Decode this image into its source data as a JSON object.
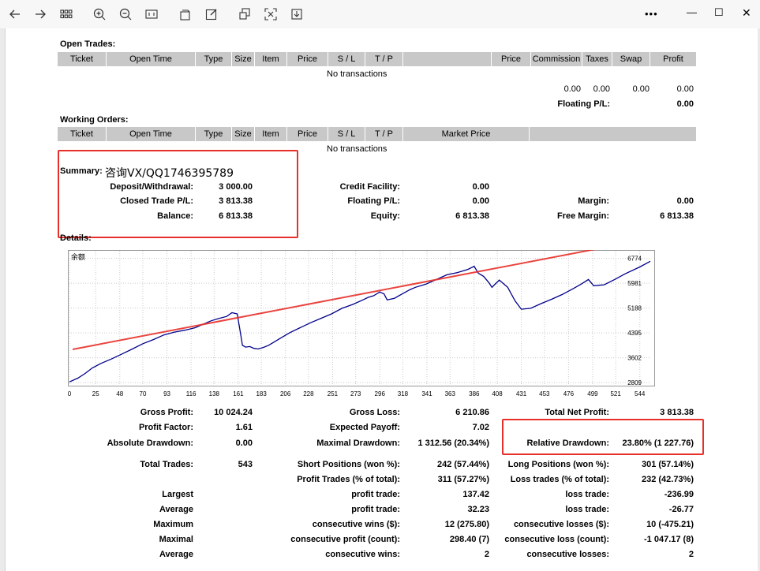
{
  "toolbar": {
    "buttons": [
      "back-icon",
      "forward-icon",
      "grid-icon",
      "zoom-in-icon",
      "zoom-out-icon",
      "fit-width-icon",
      "rotate-icon",
      "edit-icon",
      "select-icon",
      "fullscreen-icon",
      "save-icon"
    ],
    "more": "•••",
    "minimize": "—",
    "maximize": "☐",
    "close": "✕"
  },
  "open_trades": {
    "title": "Open Trades:",
    "columns": [
      "Ticket",
      "Open Time",
      "Type",
      "Size",
      "Item",
      "Price",
      "S / L",
      "T / P",
      "",
      "Price",
      "Commission",
      "Taxes",
      "Swap",
      "Profit"
    ],
    "empty": "No transactions",
    "totals": {
      "commission": "0.00",
      "taxes": "0.00",
      "swap": "0.00",
      "profit": "0.00"
    },
    "floating_label": "Floating P/L:",
    "floating_value": "0.00"
  },
  "working_orders": {
    "title": "Working Orders:",
    "columns": [
      "Ticket",
      "Open Time",
      "Type",
      "Size",
      "Item",
      "Price",
      "S / L",
      "T / P",
      "Market Price",
      ""
    ],
    "empty": "No transactions"
  },
  "summary": {
    "title": "Summary:",
    "overlay": "咨询VX/QQ1746395789",
    "deposit_label": "Deposit/Withdrawal:",
    "deposit_value": "3 000.00",
    "closed_pl_label": "Closed Trade P/L:",
    "closed_pl_value": "3 813.38",
    "balance_label": "Balance:",
    "balance_value": "6 813.38",
    "credit_label": "Credit Facility:",
    "credit_value": "0.00",
    "floating_label": "Floating P/L:",
    "floating_value": "0.00",
    "equity_label": "Equity:",
    "equity_value": "6 813.38",
    "margin_label": "Margin:",
    "margin_value": "0.00",
    "free_margin_label": "Free Margin:",
    "free_margin_value": "6 813.38"
  },
  "details": {
    "title": "Details:",
    "stats": [
      [
        "Gross Profit:",
        "10 024.24",
        "Gross Loss:",
        "6 210.86",
        "Total Net Profit:",
        "3 813.38"
      ],
      [
        "Profit Factor:",
        "1.61",
        "Expected Payoff:",
        "7.02",
        "",
        ""
      ],
      [
        "Absolute Drawdown:",
        "0.00",
        "Maximal Drawdown:",
        "1 312.56 (20.34%)",
        "Relative Drawdown:",
        "23.80% (1 227.76)"
      ],
      [
        "Total Trades:",
        "543",
        "Short Positions (won %):",
        "242 (57.44%)",
        "Long Positions (won %):",
        "301 (57.14%)"
      ],
      [
        "",
        "",
        "Profit Trades (% of total):",
        "311 (57.27%)",
        "Loss trades (% of total):",
        "232 (42.73%)"
      ],
      [
        "Largest",
        "",
        "profit trade:",
        "137.42",
        "loss trade:",
        "-236.99"
      ],
      [
        "Average",
        "",
        "profit trade:",
        "32.23",
        "loss trade:",
        "-26.77"
      ],
      [
        "Maximum",
        "",
        "consecutive wins ($):",
        "12 (275.80)",
        "consecutive losses ($):",
        "10 (-475.21)"
      ],
      [
        "Maximal",
        "",
        "consecutive profit (count):",
        "298.40 (7)",
        "consecutive loss (count):",
        "-1 047.17 (8)"
      ],
      [
        "Average",
        "",
        "consecutive wins:",
        "2",
        "consecutive losses:",
        "2"
      ]
    ]
  },
  "chart_data": {
    "type": "line",
    "title": "余额",
    "x_ticks": [
      0,
      25,
      48,
      70,
      93,
      116,
      138,
      161,
      183,
      206,
      228,
      251,
      273,
      296,
      318,
      341,
      363,
      386,
      408,
      431,
      453,
      476,
      499,
      521,
      544
    ],
    "y_ticks": [
      2809,
      3602,
      4395,
      5188,
      5981,
      6774
    ],
    "xlim": [
      0,
      554
    ],
    "ylim": [
      2710,
      6990
    ],
    "series": [
      {
        "color": "#00008b",
        "x": [
          0,
          8,
          15,
          22,
          30,
          40,
          50,
          60,
          70,
          80,
          90,
          100,
          110,
          120,
          128,
          135,
          142,
          150,
          155,
          160,
          163,
          165,
          168,
          172,
          176,
          180,
          185,
          190,
          195,
          200,
          210,
          220,
          230,
          240,
          250,
          260,
          270,
          280,
          285,
          290,
          296,
          300,
          303,
          310,
          318,
          325,
          330,
          340,
          350,
          360,
          370,
          380,
          386,
          390,
          395,
          400,
          403,
          405,
          410,
          418,
          425,
          431,
          440,
          450,
          460,
          470,
          480,
          488,
          495,
          500,
          510,
          520,
          530,
          544,
          554
        ],
        "y": [
          2830,
          2950,
          3100,
          3280,
          3420,
          3560,
          3720,
          3880,
          4050,
          4180,
          4330,
          4420,
          4480,
          4560,
          4680,
          4780,
          4850,
          4920,
          5040,
          5000,
          4420,
          4000,
          3940,
          3960,
          3900,
          3880,
          3930,
          4000,
          4100,
          4200,
          4400,
          4560,
          4720,
          4860,
          5000,
          5180,
          5300,
          5450,
          5530,
          5580,
          5700,
          5640,
          5450,
          5500,
          5650,
          5780,
          5850,
          5950,
          6100,
          6250,
          6320,
          6420,
          6520,
          6300,
          6200,
          6000,
          5850,
          5920,
          6080,
          5850,
          5420,
          5150,
          5180,
          5330,
          5470,
          5620,
          5800,
          5950,
          6100,
          5900,
          5930,
          6100,
          6280,
          6500,
          6680
        ]
      }
    ]
  }
}
